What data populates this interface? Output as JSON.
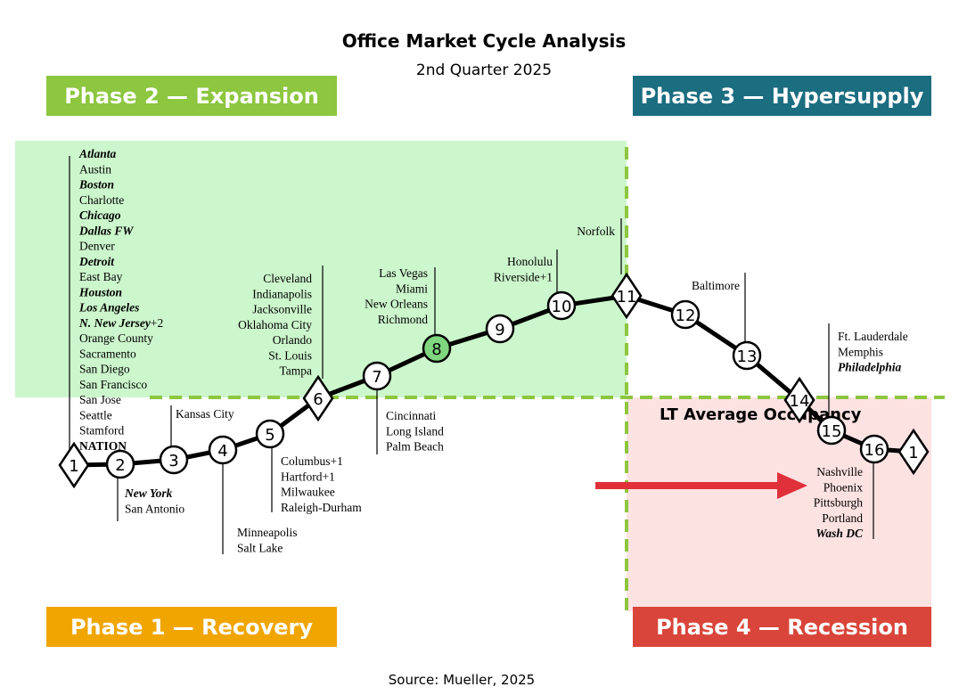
{
  "title": "Office Market Cycle Analysis",
  "subtitle": "2nd Quarter 2025",
  "source": "Source: Mueller, 2025",
  "phases": [
    "Phase 2 — Expansion",
    "Phase 3 — Hypersupply",
    "Phase 1 — Recovery",
    "Phase 4 — Recession"
  ],
  "occupancy_label": "LT Average Occupancy",
  "nodes": [
    "1",
    "2",
    "3",
    "4",
    "5",
    "6",
    "7",
    "8",
    "9",
    "10",
    "11",
    "12",
    "13",
    "14",
    "15",
    "16",
    "1"
  ],
  "markets": [
    {
      "items": [
        {
          "text": "Atlanta",
          "bold": true,
          "italic": true
        },
        "Austin",
        {
          "text": "Boston",
          "bold": true,
          "italic": true
        },
        "Charlotte",
        {
          "text": "Chicago",
          "bold": true,
          "italic": true
        },
        {
          "text": "Dallas FW",
          "bold": true,
          "italic": true
        },
        "Denver",
        {
          "text": "Detroit",
          "bold": true,
          "italic": true
        },
        "East Bay",
        {
          "text": "Houston",
          "bold": true,
          "italic": true
        },
        {
          "text": "Los Angeles",
          "bold": true,
          "italic": true
        },
        {
          "text": "N. New Jersey",
          "suffix": "+2",
          "bold": true,
          "italic": true
        },
        "Orange County",
        "Sacramento",
        "San Diego",
        "San Francisco",
        "San Jose",
        "Seattle",
        "Stamford",
        {
          "text": "NATION",
          "bold": true
        }
      ]
    },
    {
      "items": [
        {
          "text": "New York",
          "bold": true,
          "italic": true
        },
        "San Antonio"
      ]
    },
    {
      "items": [
        "Kansas City"
      ]
    },
    {
      "items": [
        "Minneapolis",
        "Salt Lake"
      ]
    },
    {
      "items": [
        "Columbus+1",
        "Hartford+1",
        "Milwaukee",
        "Raleigh-Durham"
      ]
    },
    {
      "items": [
        "Cleveland",
        "Indianapolis",
        "Jacksonville",
        "Oklahoma City",
        "Orlando",
        "St. Louis",
        "Tampa"
      ]
    },
    {
      "items": [
        "Cincinnati",
        "Long Island",
        "Palm Beach"
      ]
    },
    {
      "items": [
        "Las Vegas",
        "Miami",
        "New Orleans",
        "Richmond"
      ]
    },
    {
      "items": [
        "Honolulu",
        "Riverside+1"
      ]
    },
    {
      "items": [
        "Norfolk"
      ]
    },
    {
      "items": [
        "Baltimore"
      ]
    },
    {
      "items": [
        "Ft. Lauderdale",
        "Memphis",
        {
          "text": "Philadelphia",
          "bold": true,
          "italic": true
        }
      ]
    },
    {
      "items": [
        "Nashville",
        "Phoenix",
        "Pittsburgh",
        "Portland",
        {
          "text": "Wash DC",
          "bold": true,
          "italic": true
        }
      ]
    }
  ]
}
